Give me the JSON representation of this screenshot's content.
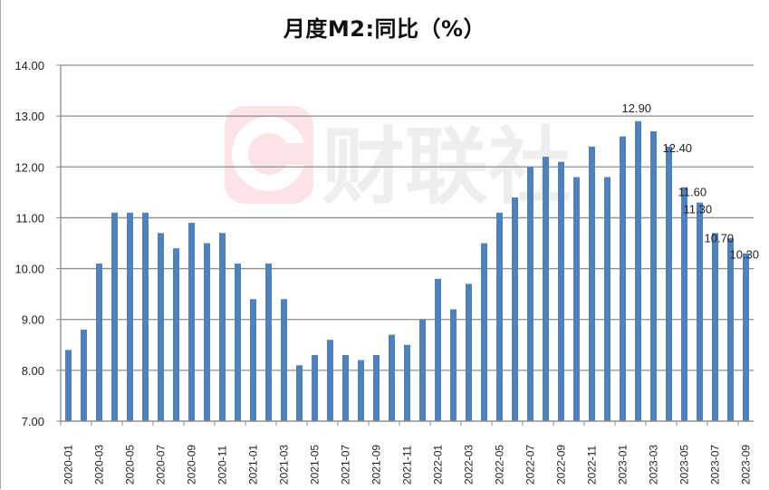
{
  "chart_data": {
    "type": "bar",
    "title": "月度M2:同比（%）",
    "xlabel": "",
    "ylabel": "",
    "ylim": [
      7.0,
      14.0
    ],
    "yticks": [
      "7.00",
      "8.00",
      "9.00",
      "10.00",
      "11.00",
      "12.00",
      "13.00",
      "14.00"
    ],
    "grid": true,
    "legend": null,
    "bar_color": "#4F81BD",
    "watermark": "财联社",
    "categories": [
      "2020-01",
      "2020-02",
      "2020-03",
      "2020-04",
      "2020-05",
      "2020-06",
      "2020-07",
      "2020-08",
      "2020-09",
      "2020-10",
      "2020-11",
      "2020-12",
      "2021-01",
      "2021-02",
      "2021-03",
      "2021-04",
      "2021-05",
      "2021-06",
      "2021-07",
      "2021-08",
      "2021-09",
      "2021-10",
      "2021-11",
      "2021-12",
      "2022-01",
      "2022-02",
      "2022-03",
      "2022-04",
      "2022-05",
      "2022-06",
      "2022-07",
      "2022-08",
      "2022-09",
      "2022-10",
      "2022-11",
      "2022-12",
      "2023-01",
      "2023-02",
      "2023-03",
      "2023-04",
      "2023-05",
      "2023-06",
      "2023-07",
      "2023-08",
      "2023-09"
    ],
    "xtick_labels": [
      "2020-01",
      "2020-03",
      "2020-05",
      "2020-07",
      "2020-09",
      "2020-11",
      "2021-01",
      "2021-03",
      "2021-05",
      "2021-07",
      "2021-09",
      "2021-11",
      "2022-01",
      "2022-03",
      "2022-05",
      "2022-07",
      "2022-09",
      "2022-11",
      "2023-01",
      "2023-03",
      "2023-05",
      "2023-07",
      "2023-09"
    ],
    "values": [
      8.4,
      8.8,
      10.1,
      11.1,
      11.1,
      11.1,
      10.7,
      10.4,
      10.9,
      10.5,
      10.7,
      10.1,
      9.4,
      10.1,
      9.4,
      8.1,
      8.3,
      8.6,
      8.3,
      8.2,
      8.3,
      8.7,
      8.5,
      9.0,
      9.8,
      9.2,
      9.7,
      10.5,
      11.1,
      11.4,
      12.0,
      12.2,
      12.1,
      11.8,
      12.4,
      11.8,
      12.6,
      12.9,
      12.7,
      12.4,
      11.6,
      11.3,
      10.7,
      10.6,
      10.3
    ],
    "annotations": [
      {
        "category": "2023-02",
        "text": "12.90"
      },
      {
        "category": "2023-04",
        "text": "12.40"
      },
      {
        "category": "2023-05",
        "text": "11.60"
      },
      {
        "category": "2023-06",
        "text": "11.30"
      },
      {
        "category": "2023-07",
        "text": "10.70"
      },
      {
        "category": "2023-09",
        "text": "10.30"
      }
    ]
  }
}
